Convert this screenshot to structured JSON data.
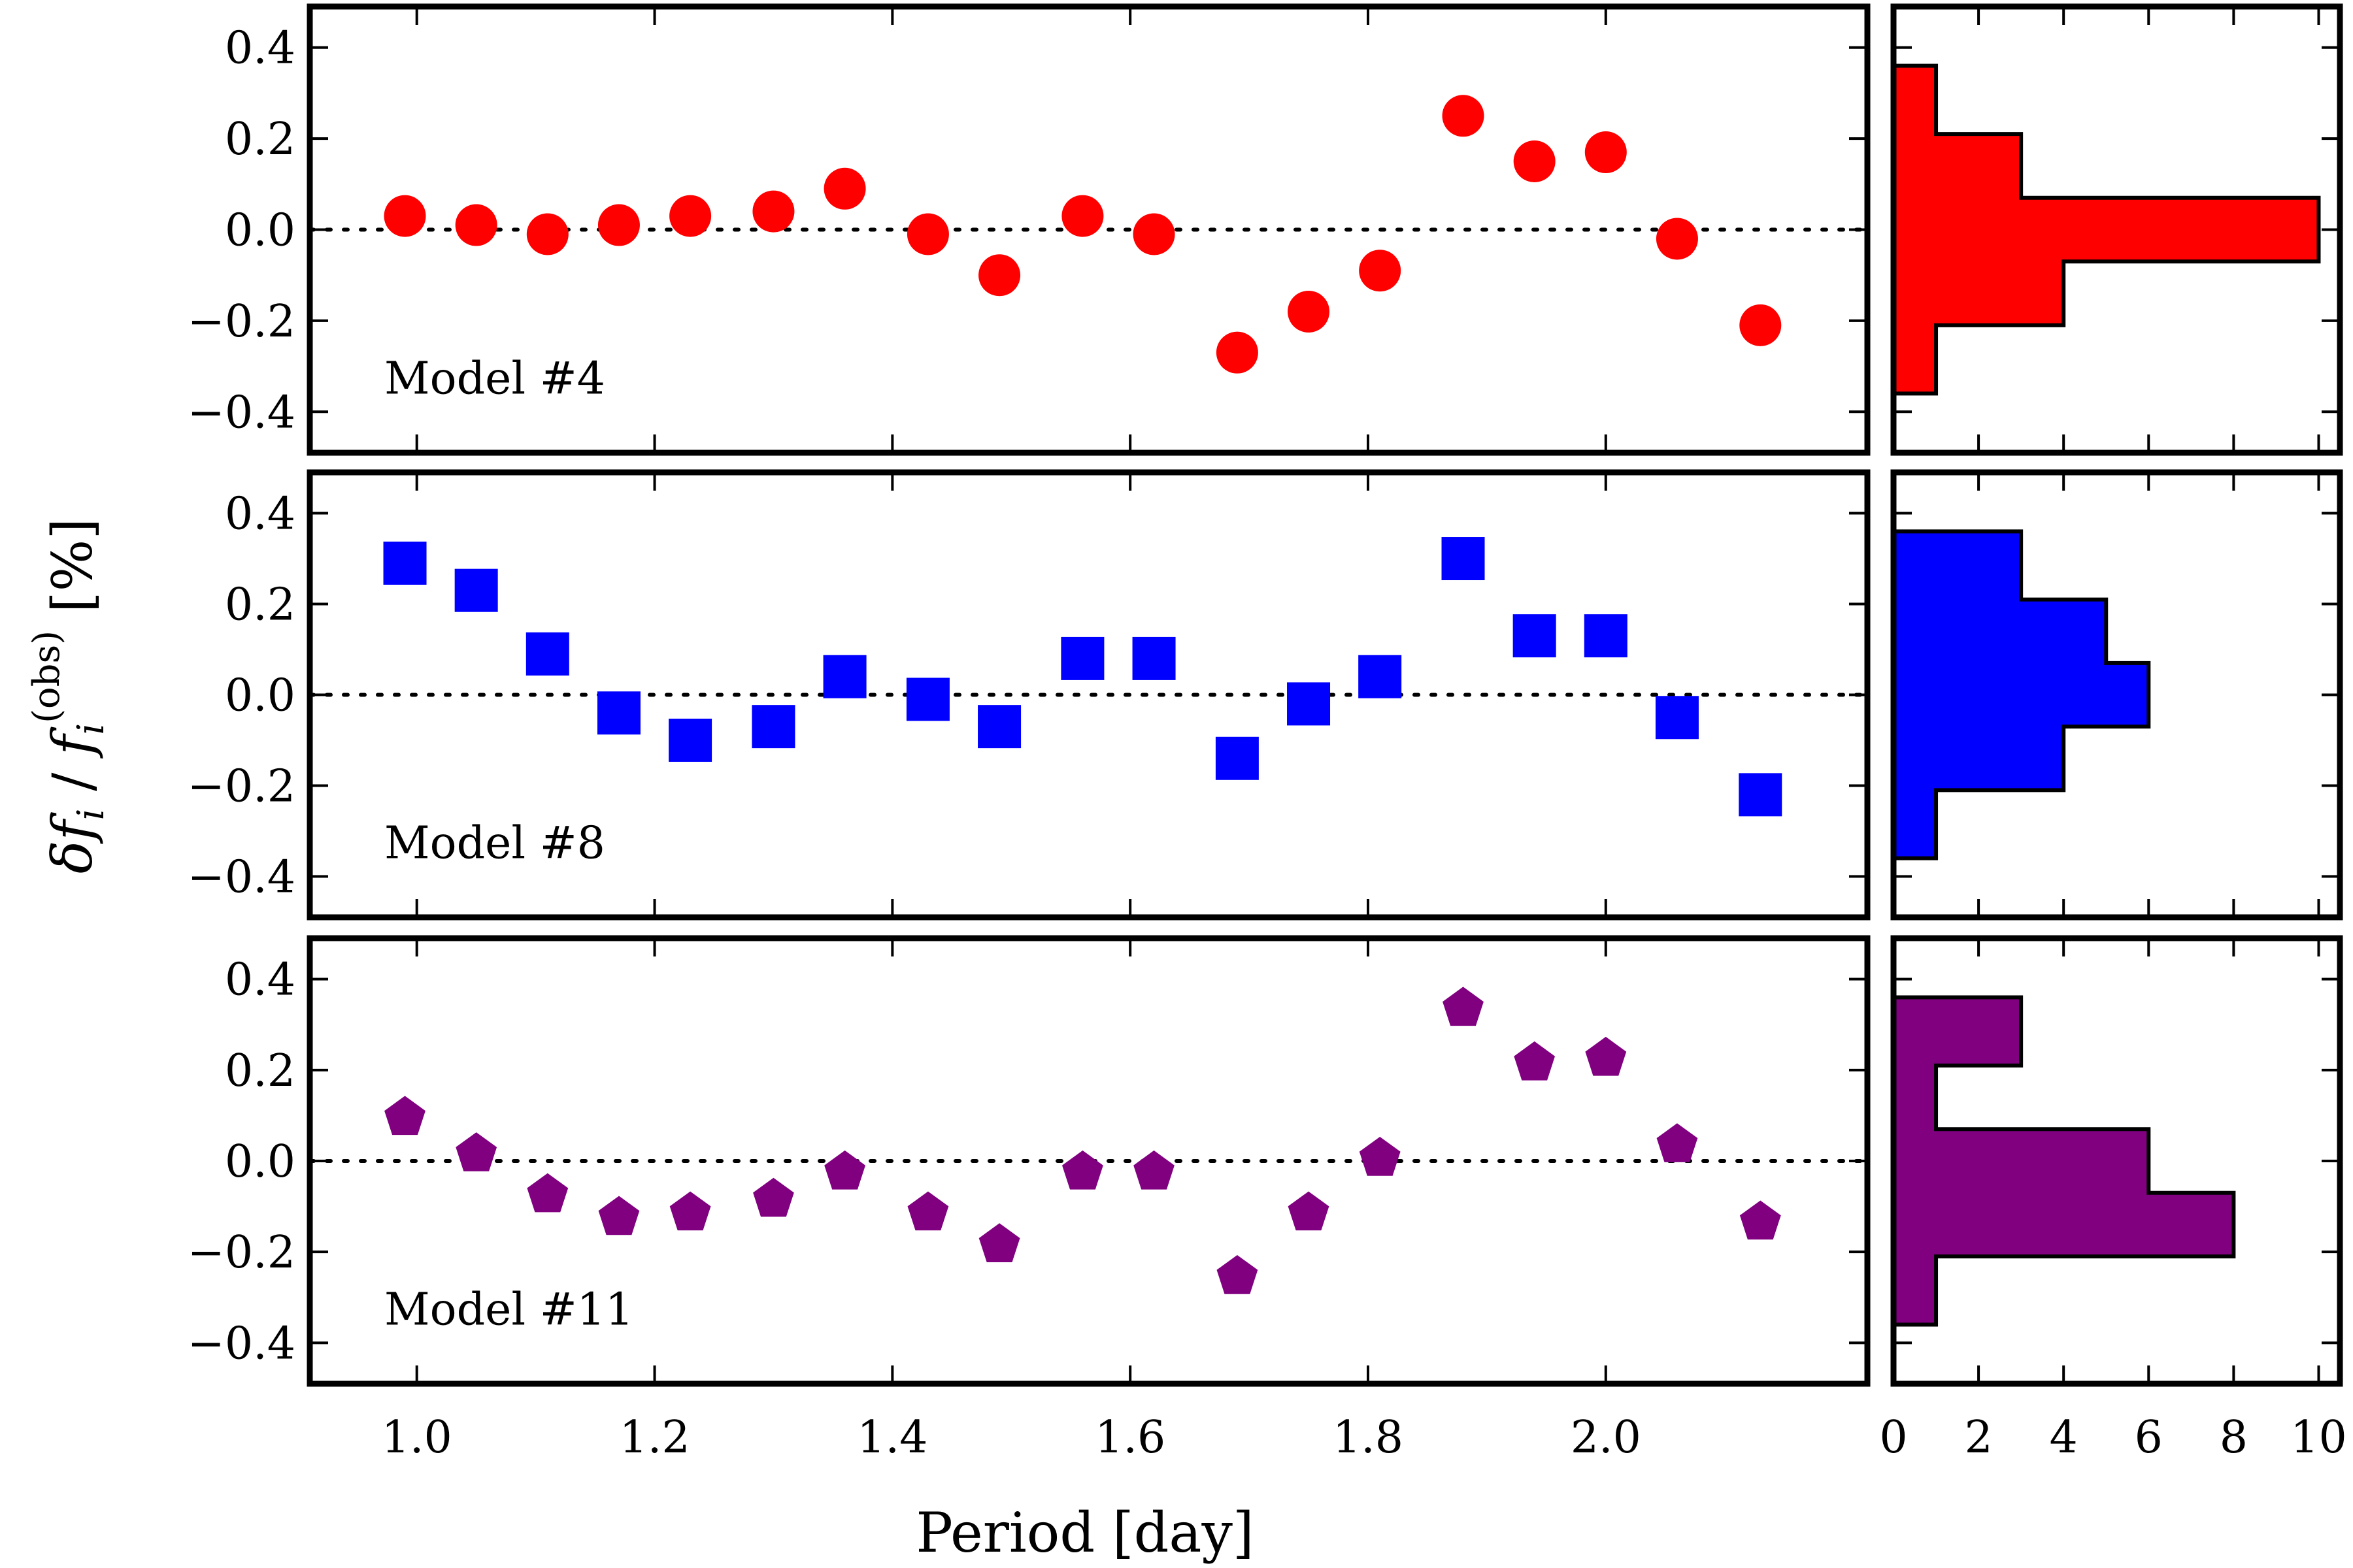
{
  "chart_data": {
    "type": "scatter",
    "xlabel": "Period [day]",
    "ylabel": "δ f_i / f_i^(obs) [%]",
    "ylabel_parts": {
      "delta": "δ",
      "f": "f",
      "sub": "i",
      "slash": " / ",
      "sup": "(obs)",
      "unit": " [%]"
    },
    "xlim": [
      0.91,
      2.22
    ],
    "ylim": [
      -0.49,
      0.49
    ],
    "x_ticks": [
      1.0,
      1.2,
      1.4,
      1.6,
      1.8,
      2.0
    ],
    "x_tick_labels": [
      "1.0",
      "1.2",
      "1.4",
      "1.6",
      "1.8",
      "2.0"
    ],
    "y_ticks": [
      0.4,
      0.2,
      0.0,
      -0.2,
      -0.4
    ],
    "y_tick_labels": [
      "0.4",
      "0.2",
      "0.0",
      "−0.2",
      "−0.4"
    ],
    "zero_line": true,
    "grid": false,
    "periods": [
      0.99,
      1.05,
      1.11,
      1.17,
      1.23,
      1.3,
      1.36,
      1.43,
      1.49,
      1.56,
      1.62,
      1.69,
      1.75,
      1.81,
      1.88,
      1.94,
      2.0,
      2.06,
      2.13
    ],
    "series": [
      {
        "name": "Model #4",
        "marker": "circle",
        "color": "#ff0000",
        "values": [
          0.03,
          0.01,
          -0.01,
          0.01,
          0.03,
          0.04,
          0.09,
          -0.01,
          -0.1,
          0.03,
          -0.01,
          -0.27,
          -0.18,
          -0.09,
          0.25,
          0.15,
          0.17,
          -0.02,
          -0.21
        ]
      },
      {
        "name": "Model #8",
        "marker": "square",
        "color": "#0000ff",
        "values": [
          0.29,
          0.23,
          0.09,
          -0.04,
          -0.1,
          -0.07,
          0.04,
          -0.01,
          -0.07,
          0.08,
          0.08,
          -0.14,
          -0.02,
          0.04,
          0.3,
          0.13,
          0.13,
          -0.05,
          -0.22
        ]
      },
      {
        "name": "Model #11",
        "marker": "pentagon",
        "color": "#800080",
        "values": [
          0.1,
          0.02,
          -0.07,
          -0.12,
          -0.11,
          -0.08,
          -0.02,
          -0.11,
          -0.18,
          -0.02,
          -0.02,
          -0.25,
          -0.11,
          0.01,
          0.34,
          0.22,
          0.23,
          0.04,
          -0.13
        ]
      }
    ],
    "histograms": {
      "orientation": "horizontal",
      "bin_edges": [
        -0.36,
        -0.21,
        -0.07,
        0.07,
        0.21,
        0.36
      ],
      "xlim": [
        0,
        10.5
      ],
      "x_ticks": [
        0,
        2,
        4,
        6,
        8,
        10
      ],
      "x_tick_labels": [
        "0",
        "2",
        "4",
        "6",
        "8",
        "10"
      ],
      "counts": [
        [
          1,
          4,
          10,
          3,
          1
        ],
        [
          1,
          4,
          6,
          5,
          3
        ],
        [
          1,
          8,
          6,
          1,
          3
        ]
      ]
    }
  }
}
